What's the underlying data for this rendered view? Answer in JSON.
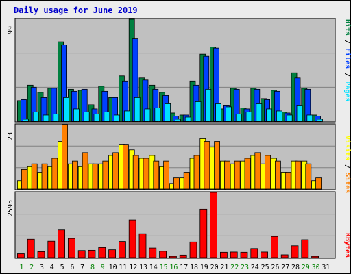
{
  "colors": {
    "background": "#ececec",
    "plot_bg": "#c0c0c0",
    "title": "#0000cc",
    "hits": "#008040",
    "files": "#0040ff",
    "pages": "#00e0ff",
    "visits": "#ffff00",
    "sites": "#ff8000",
    "kbytes": "#ff0000",
    "weekend_label": "#008000",
    "weekday_label": "#000000"
  },
  "labels": {
    "slash": " / "
  },
  "chart_data": [
    {
      "type": "bar",
      "title": "Daily usage for June 2019",
      "ylabel_top": "99",
      "ylim": [
        0,
        99
      ],
      "categories": [
        "1",
        "2",
        "3",
        "4",
        "5",
        "6",
        "7",
        "8",
        "9",
        "10",
        "11",
        "12",
        "13",
        "14",
        "15",
        "16",
        "17",
        "18",
        "19",
        "20",
        "21",
        "22",
        "23",
        "24",
        "25",
        "26",
        "27",
        "28",
        "29",
        "30",
        "31"
      ],
      "weekend_days": [
        "1",
        "2",
        "8",
        "9",
        "15",
        "16",
        "22",
        "23",
        "29",
        "30"
      ],
      "series": [
        {
          "name": "Hits",
          "values": [
            20,
            35,
            28,
            32,
            77,
            31,
            30,
            16,
            34,
            23,
            44,
            99,
            42,
            35,
            28,
            8,
            6,
            39,
            65,
            72,
            12,
            32,
            13,
            32,
            22,
            30,
            9,
            47,
            32,
            6,
            0
          ]
        },
        {
          "name": "Files",
          "values": [
            21,
            33,
            23,
            32,
            74,
            29,
            31,
            12,
            29,
            23,
            39,
            80,
            40,
            31,
            25,
            5,
            6,
            35,
            63,
            71,
            15,
            31,
            12,
            31,
            21,
            29,
            8,
            42,
            31,
            5,
            0
          ]
        },
        {
          "name": "Pages",
          "values": [
            2,
            9,
            6,
            7,
            23,
            12,
            9,
            7,
            9,
            6,
            10,
            23,
            12,
            13,
            17,
            2,
            4,
            19,
            31,
            17,
            14,
            7,
            9,
            17,
            12,
            10,
            6,
            15,
            6,
            2,
            0
          ]
        }
      ]
    },
    {
      "type": "bar",
      "ylabel_top": "23",
      "ylim": [
        0,
        23
      ],
      "categories": [
        "1",
        "2",
        "3",
        "4",
        "5",
        "6",
        "7",
        "8",
        "9",
        "10",
        "11",
        "12",
        "13",
        "14",
        "15",
        "16",
        "17",
        "18",
        "19",
        "20",
        "21",
        "22",
        "23",
        "24",
        "25",
        "26",
        "27",
        "28",
        "29",
        "30",
        "31"
      ],
      "series": [
        {
          "name": "Visits",
          "values": [
            3,
            8,
            6,
            8,
            17,
            9,
            8,
            9,
            9,
            12,
            16,
            14,
            11,
            12,
            8,
            2,
            4,
            11,
            18,
            15,
            10,
            9,
            10,
            12,
            9,
            11,
            6,
            10,
            10,
            3,
            0
          ]
        },
        {
          "name": "Sites",
          "values": [
            7,
            9,
            9,
            11,
            23,
            10,
            13,
            9,
            10,
            13,
            16,
            12,
            11,
            10,
            10,
            4,
            6,
            12,
            17,
            17,
            10,
            10,
            11,
            13,
            12,
            10,
            6,
            10,
            9,
            4,
            0
          ]
        }
      ]
    },
    {
      "type": "bar",
      "ylabel_top": "2595",
      "ylim": [
        0,
        2595
      ],
      "categories": [
        "1",
        "2",
        "3",
        "4",
        "5",
        "6",
        "7",
        "8",
        "9",
        "10",
        "11",
        "12",
        "13",
        "14",
        "15",
        "16",
        "17",
        "18",
        "19",
        "20",
        "21",
        "22",
        "23",
        "24",
        "25",
        "26",
        "27",
        "28",
        "29",
        "30",
        "31"
      ],
      "series": [
        {
          "name": "KBytes",
          "values": [
            150,
            730,
            235,
            650,
            1100,
            760,
            280,
            290,
            400,
            310,
            640,
            1500,
            950,
            380,
            250,
            50,
            100,
            620,
            1930,
            2595,
            210,
            220,
            210,
            360,
            220,
            840,
            110,
            470,
            710,
            50,
            0
          ]
        }
      ]
    }
  ]
}
